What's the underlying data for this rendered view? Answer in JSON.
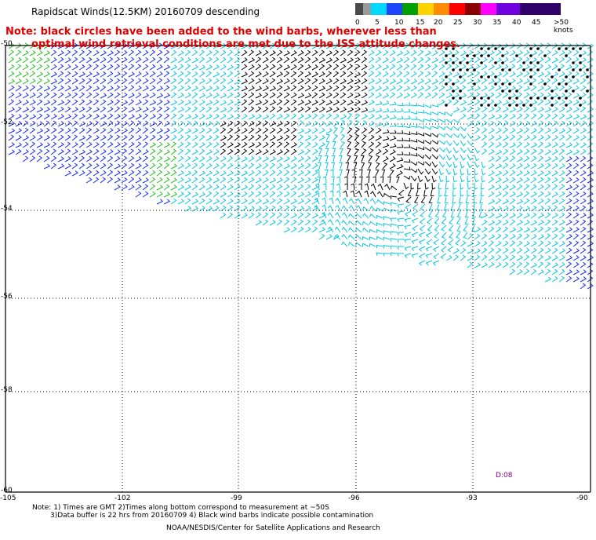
{
  "title": "Rapidscat Winds(12.5KM) 20160709 descending",
  "note_line1": "Note: black circles have been added to the wind barbs, wherever less than",
  "note_line2": "optimal wind retrieval conditions are met due to the ISS attitude changes.",
  "legend": {
    "labels": [
      "0",
      "5",
      "10",
      "15",
      "20",
      "25",
      "30",
      "35",
      "40",
      "45",
      ">50 knots"
    ],
    "colors": [
      "#000000",
      "#6e6e6e",
      "#00b4ff",
      "#1e46ff",
      "#00a000",
      "#ffd200",
      "#ff8c00",
      "#ff0000",
      "#800000",
      "#ff00ff",
      "#6a00d0"
    ]
  },
  "axes": {
    "lat_labels": [
      "-50",
      "-52",
      "-54",
      "-56",
      "-58",
      "-60"
    ],
    "lon_labels": [
      "-105",
      "-102",
      "-99",
      "-96",
      "-93",
      "-90"
    ]
  },
  "data_tag": "D:08",
  "footer_line1": "Note: 1) Times are GMT 2)Times along bottom correspond to measurement at ~50S",
  "footer_line2": "3)Data buffer is 22 hrs from 20160709 4) Black wind barbs indicate possible contamination",
  "footer_line3": "NOAA/NESDIS/Center for Satellite Applications and Research",
  "colors": {
    "lightblue_barb": "#00c8e0",
    "blue_barb": "#1428ff",
    "green_barb": "#20c020",
    "black_barb": "#000000",
    "note_red": "#e00000",
    "grid": "#000000"
  }
}
